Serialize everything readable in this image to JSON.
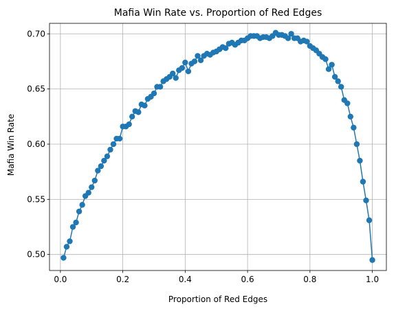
{
  "chart_data": {
    "type": "line",
    "title": "Mafia Win Rate vs. Proportion of Red Edges",
    "xlabel": "Proportion of Red Edges",
    "ylabel": "Mafia Win Rate",
    "xlim": [
      -0.035,
      1.045
    ],
    "ylim": [
      0.4855,
      0.7095
    ],
    "xticks": [
      0.0,
      0.2,
      0.4,
      0.6,
      0.8,
      1.0
    ],
    "xtick_labels": [
      "0.0",
      "0.2",
      "0.4",
      "0.6",
      "0.8",
      "1.0"
    ],
    "yticks": [
      0.5,
      0.55,
      0.6,
      0.65,
      0.7
    ],
    "ytick_labels": [
      "0.50",
      "0.55",
      "0.60",
      "0.65",
      "0.70"
    ],
    "grid": true,
    "marker": "circle",
    "series": [
      {
        "color": "#1f77b4",
        "x": [
          0.01,
          0.02,
          0.03,
          0.04,
          0.05,
          0.06,
          0.07,
          0.08,
          0.09,
          0.1,
          0.11,
          0.12,
          0.13,
          0.14,
          0.15,
          0.16,
          0.17,
          0.18,
          0.19,
          0.2,
          0.21,
          0.22,
          0.23,
          0.24,
          0.25,
          0.26,
          0.27,
          0.28,
          0.29,
          0.3,
          0.31,
          0.32,
          0.33,
          0.34,
          0.35,
          0.36,
          0.37,
          0.38,
          0.39,
          0.4,
          0.41,
          0.42,
          0.43,
          0.44,
          0.45,
          0.46,
          0.47,
          0.48,
          0.49,
          0.5,
          0.51,
          0.52,
          0.53,
          0.54,
          0.55,
          0.56,
          0.57,
          0.58,
          0.59,
          0.6,
          0.61,
          0.62,
          0.63,
          0.64,
          0.65,
          0.66,
          0.67,
          0.68,
          0.69,
          0.7,
          0.71,
          0.72,
          0.73,
          0.74,
          0.75,
          0.76,
          0.77,
          0.78,
          0.79,
          0.8,
          0.81,
          0.82,
          0.83,
          0.84,
          0.85,
          0.86,
          0.87,
          0.88,
          0.89,
          0.9,
          0.91,
          0.92,
          0.93,
          0.94,
          0.95,
          0.96,
          0.97,
          0.98,
          0.99,
          1.0
        ],
        "y": [
          0.497,
          0.507,
          0.512,
          0.525,
          0.529,
          0.539,
          0.545,
          0.553,
          0.556,
          0.561,
          0.567,
          0.576,
          0.58,
          0.585,
          0.589,
          0.595,
          0.6,
          0.605,
          0.605,
          0.616,
          0.616,
          0.618,
          0.625,
          0.63,
          0.629,
          0.636,
          0.635,
          0.641,
          0.643,
          0.646,
          0.652,
          0.652,
          0.657,
          0.659,
          0.661,
          0.664,
          0.66,
          0.667,
          0.669,
          0.674,
          0.666,
          0.673,
          0.675,
          0.68,
          0.676,
          0.68,
          0.682,
          0.681,
          0.683,
          0.684,
          0.686,
          0.688,
          0.687,
          0.691,
          0.692,
          0.69,
          0.692,
          0.694,
          0.694,
          0.696,
          0.698,
          0.698,
          0.698,
          0.696,
          0.697,
          0.697,
          0.696,
          0.698,
          0.701,
          0.699,
          0.699,
          0.698,
          0.696,
          0.7,
          0.696,
          0.696,
          0.693,
          0.694,
          0.693,
          0.689,
          0.687,
          0.685,
          0.682,
          0.679,
          0.677,
          0.668,
          0.672,
          0.661,
          0.657,
          0.652,
          0.64,
          0.637,
          0.625,
          0.615,
          0.6,
          0.585,
          0.566,
          0.549,
          0.531,
          0.495
        ]
      }
    ]
  }
}
